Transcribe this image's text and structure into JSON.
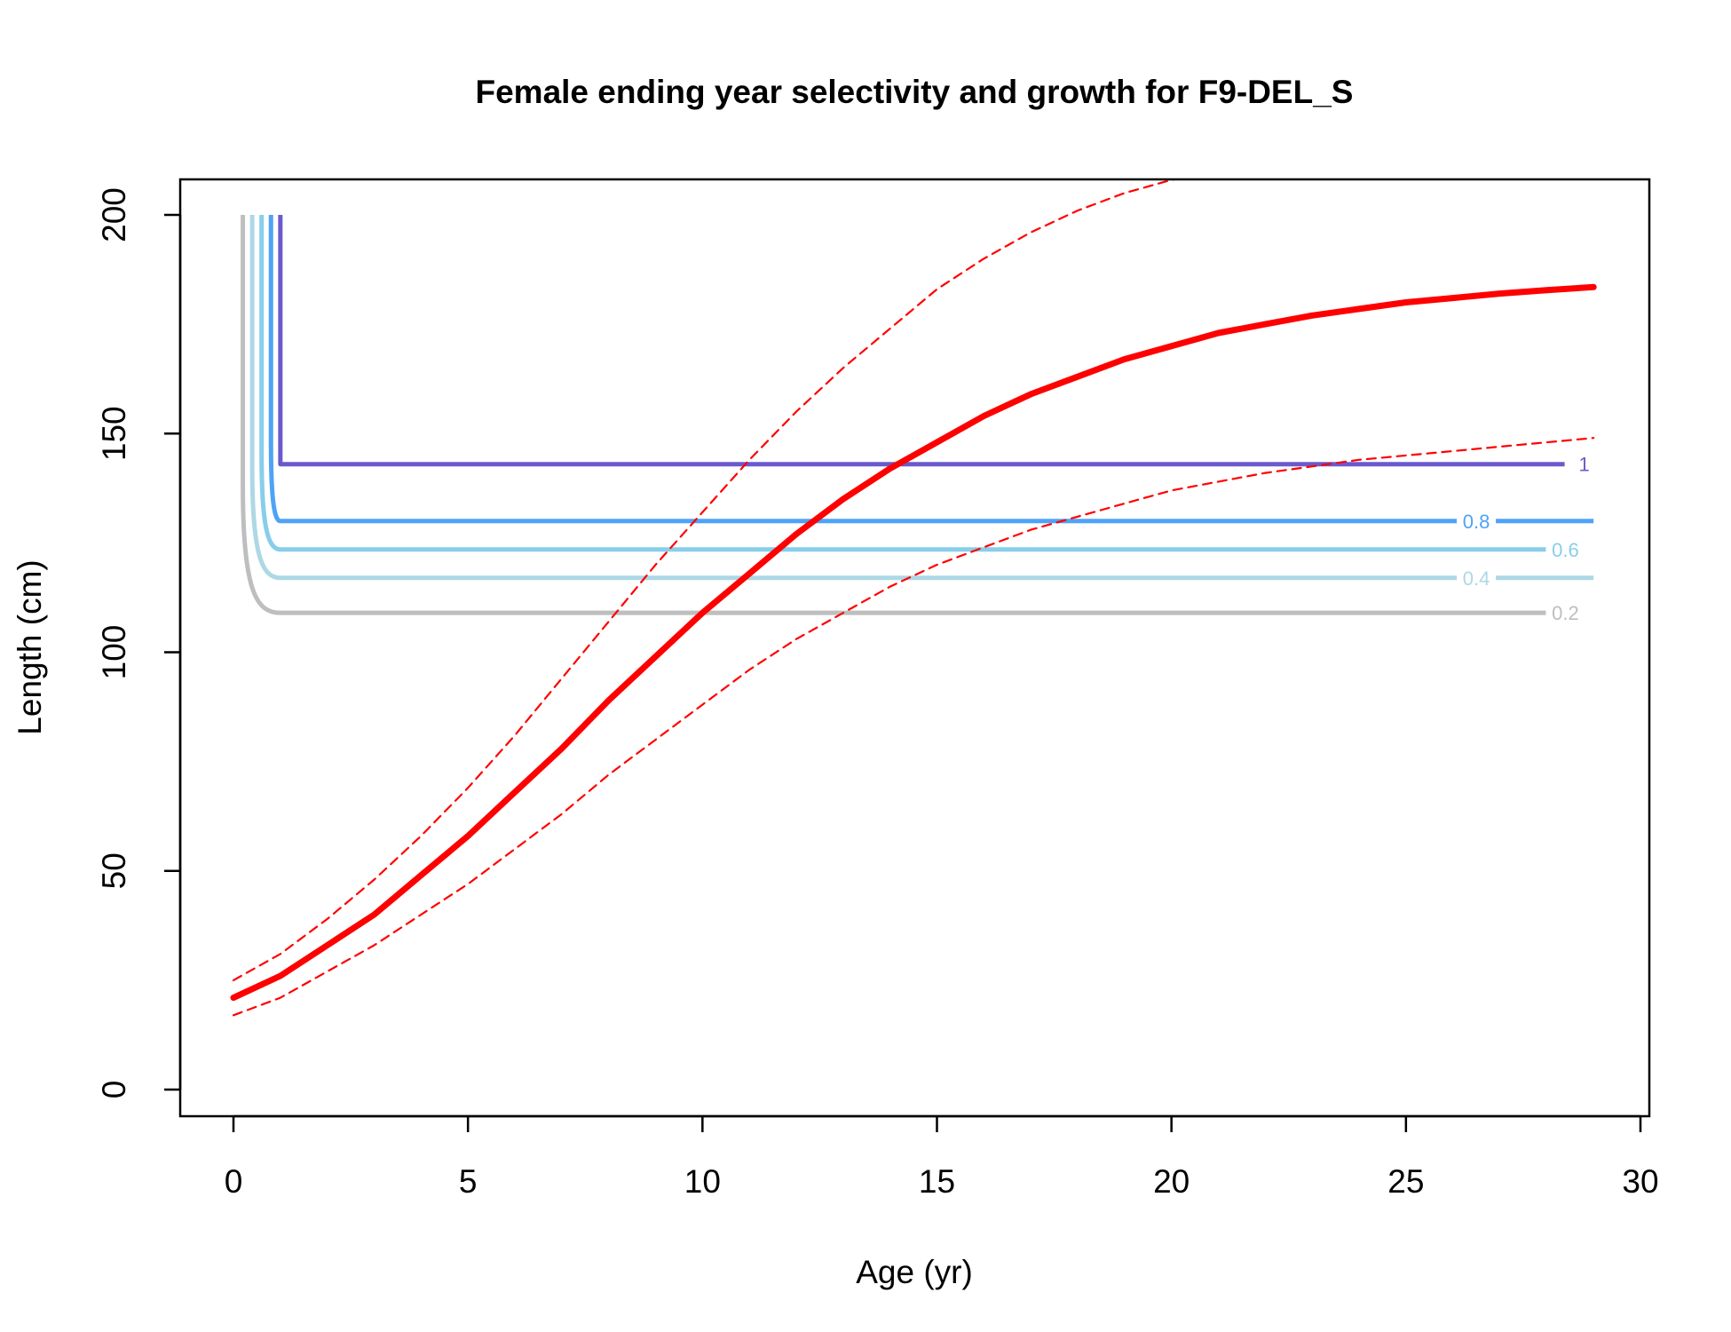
{
  "chart_data": {
    "type": "line",
    "title": "Female ending year selectivity and growth for F9-DEL_S",
    "xlabel": "Age (yr)",
    "ylabel": "Length (cm)",
    "xlim": [
      -1.2,
      30.1
    ],
    "ylim": [
      -6,
      200
    ],
    "xticks": [
      0,
      5,
      10,
      15,
      20,
      25,
      30
    ],
    "yticks": [
      0,
      50,
      100,
      150,
      200
    ],
    "grid": false,
    "legend": "none",
    "selectivity_contours": [
      {
        "label": "0.2",
        "color": "#bebebe",
        "x_start": 0.2,
        "knee_x": 1.0,
        "knee_y": 109,
        "label_x": 28.4,
        "x_end": 28.0
      },
      {
        "label": "0.4",
        "color": "#add8e6",
        "x_start": 0.4,
        "knee_x": 1.0,
        "knee_y": 117,
        "label_x": 26.5,
        "x_end": 29.0
      },
      {
        "label": "0.6",
        "color": "#87ceeb",
        "x_start": 0.6,
        "knee_x": 1.0,
        "knee_y": 123.5,
        "label_x": 28.4,
        "x_end": 28.0
      },
      {
        "label": "0.8",
        "color": "#4fa3f7",
        "x_start": 0.8,
        "knee_x": 1.0,
        "knee_y": 130,
        "label_x": 26.5,
        "x_end": 29.0
      },
      {
        "label": "1",
        "color": "#6a5acd",
        "x_start": 1.0,
        "knee_x": 1.0,
        "knee_y": 143,
        "label_x": 28.8,
        "x_end": 28.5
      }
    ],
    "series": [
      {
        "role": "mean",
        "color": "#ff0000",
        "style": "solid",
        "x": [
          0.0,
          1,
          2,
          3,
          4,
          5,
          6,
          7,
          8,
          9,
          10,
          11,
          12,
          13,
          14,
          15,
          16,
          17,
          18,
          19,
          20,
          21,
          22,
          23,
          24,
          25,
          26,
          27,
          28,
          29
        ],
        "y": [
          21,
          26,
          33,
          40,
          49,
          58,
          68,
          78,
          89,
          99,
          109,
          118,
          127,
          135,
          142,
          148,
          154,
          159,
          163,
          167,
          170,
          173,
          175,
          177,
          178.5,
          180,
          181,
          182,
          182.8,
          183.5
        ]
      },
      {
        "role": "upper",
        "color": "#ff0000",
        "style": "dashed",
        "x": [
          0.0,
          1,
          2,
          3,
          4,
          5,
          6,
          7,
          8,
          9,
          10,
          11,
          12,
          13,
          14,
          15,
          16,
          17,
          18,
          19,
          20,
          21,
          21.8
        ],
        "y": [
          25,
          31,
          39,
          48,
          58,
          69,
          81,
          94,
          107,
          120,
          132,
          144,
          155,
          165,
          174,
          183,
          190,
          196,
          201,
          205,
          208,
          210,
          211
        ]
      },
      {
        "role": "lower",
        "color": "#ff0000",
        "style": "dashed",
        "x": [
          0.0,
          1,
          2,
          3,
          4,
          5,
          6,
          7,
          8,
          9,
          10,
          11,
          12,
          13,
          14,
          15,
          16,
          17,
          18,
          19,
          20,
          21,
          22,
          23,
          24,
          25,
          26,
          27,
          28,
          29
        ],
        "y": [
          17,
          21,
          27,
          33,
          40,
          47,
          55,
          63,
          72,
          80,
          88,
          96,
          103,
          109,
          115,
          120,
          124,
          128,
          131,
          134,
          137,
          139,
          141,
          142.5,
          144,
          145,
          146,
          147,
          148,
          149
        ]
      }
    ]
  }
}
